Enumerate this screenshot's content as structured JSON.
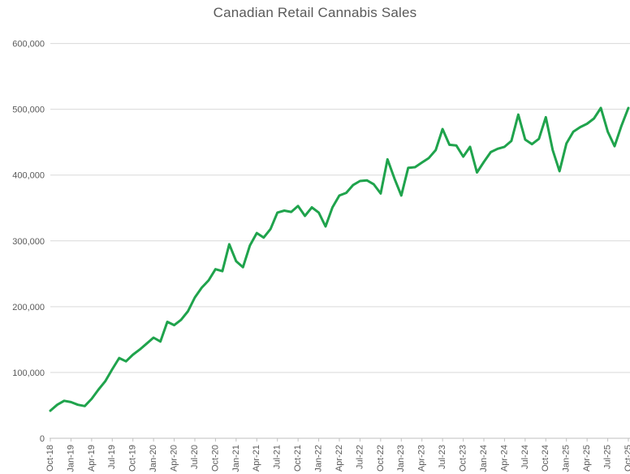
{
  "chart_data": {
    "type": "line",
    "title": "Canadian Retail Cannabis Sales",
    "series_name": "retail-cannabis-sales",
    "x_frequency": "monthly",
    "x_start": "Oct-18",
    "x_end": "Oct-25",
    "label_every_n_points": 3,
    "tick_labels": [
      "Oct-18",
      "Jan-19",
      "Apr-19",
      "Jul-19",
      "Oct-19",
      "Jan-20",
      "Apr-20",
      "Jul-20",
      "Oct-20",
      "Jan-21",
      "Apr-21",
      "Jul-21",
      "Oct-21",
      "Jan-22",
      "Apr-22",
      "Jul-22",
      "Oct-22",
      "Jan-23",
      "Apr-23",
      "Jul-23",
      "Oct-23",
      "Jan-24",
      "Apr-24",
      "Jul-24",
      "Oct-24",
      "Jan-25",
      "Apr-25",
      "Jul-25",
      "Oct-25"
    ],
    "values": [
      42000,
      51000,
      57000,
      55000,
      51000,
      49000,
      60000,
      74000,
      87000,
      105000,
      122000,
      117000,
      127000,
      135000,
      144000,
      153000,
      147000,
      177000,
      172000,
      180000,
      193000,
      214000,
      229000,
      240000,
      257000,
      254000,
      295000,
      269000,
      260000,
      293000,
      312000,
      305000,
      318000,
      343000,
      346000,
      344000,
      353000,
      338000,
      351000,
      343000,
      322000,
      351000,
      369000,
      373000,
      385000,
      391000,
      392000,
      386000,
      372000,
      424000,
      395000,
      369000,
      411000,
      412000,
      419000,
      426000,
      438000,
      470000,
      446000,
      445000,
      428000,
      443000,
      404000,
      420000,
      435000,
      440000,
      443000,
      452000,
      492000,
      454000,
      447000,
      455000,
      488000,
      438000,
      406000,
      448000,
      466000,
      473000,
      478000,
      486000,
      502000,
      466000,
      444000,
      475000,
      502000
    ],
    "y_tick_labels": [
      "0",
      "100,000",
      "200,000",
      "300,000",
      "400,000",
      "500,000",
      "600,000"
    ],
    "ylim": [
      0,
      600000
    ],
    "grid": "horizontal",
    "legend": "none",
    "colors": {
      "line": "#1FA34C",
      "gridline": "#D9D9D9",
      "axis_line": "#BFBFBF",
      "tick_mark": "#BFBFBF",
      "label_text": "#595959",
      "title_text": "#595959",
      "background": "#FFFFFF"
    }
  }
}
